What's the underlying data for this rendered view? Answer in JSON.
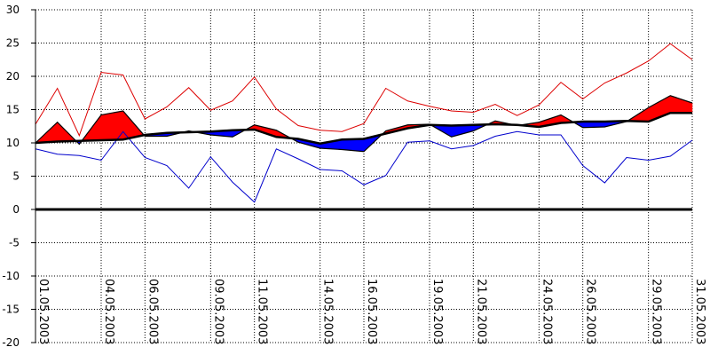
{
  "chart_data": {
    "type": "line",
    "title": "",
    "xlabel": "",
    "ylabel": "",
    "ylim": [
      -20,
      30
    ],
    "yticks": [
      30,
      25,
      20,
      15,
      10,
      5,
      0,
      -5,
      -10,
      -15,
      -20
    ],
    "grid": true,
    "x": [
      "01.05.2003",
      "02.05.2003",
      "03.05.2003",
      "04.05.2003",
      "05.05.2003",
      "06.05.2003",
      "07.05.2003",
      "08.05.2003",
      "09.05.2003",
      "10.05.2003",
      "11.05.2003",
      "12.05.2003",
      "13.05.2003",
      "14.05.2003",
      "15.05.2003",
      "16.05.2003",
      "17.05.2003",
      "18.05.2003",
      "19.05.2003",
      "20.05.2003",
      "21.05.2003",
      "22.05.2003",
      "23.05.2003",
      "24.05.2003",
      "25.05.2003",
      "26.05.2003",
      "27.05.2003",
      "28.05.2003",
      "29.05.2003",
      "30.05.2003",
      "31.05.2003"
    ],
    "x_tick_labels": [
      "01.05.2003",
      "04.05.2003",
      "06.05.2003",
      "09.05.2003",
      "11.05.2003",
      "14.05.2003",
      "16.05.2003",
      "19.05.2003",
      "21.05.2003",
      "24.05.2003",
      "26.05.2003",
      "29.05.2003",
      "31.05.2003"
    ],
    "x_tick_indices": [
      0,
      3,
      5,
      8,
      10,
      13,
      15,
      18,
      20,
      23,
      25,
      28,
      30
    ],
    "series": [
      {
        "role": "max",
        "color": "#dd0000",
        "values": [
          12.8,
          18.2,
          11.1,
          20.6,
          20.2,
          13.6,
          15.4,
          18.3,
          14.9,
          16.3,
          19.9,
          15.1,
          12.6,
          11.9,
          11.7,
          12.9,
          18.2,
          16.3,
          15.5,
          14.8,
          14.6,
          15.8,
          14.1,
          15.7,
          19.1,
          16.6,
          19.0,
          20.5,
          22.3,
          24.9,
          22.5
        ]
      },
      {
        "role": "min",
        "color": "#0000cc",
        "values": [
          9.1,
          8.3,
          8.1,
          7.4,
          11.7,
          7.8,
          6.6,
          3.2,
          7.9,
          4.1,
          1.1,
          9.1,
          7.6,
          6.0,
          5.8,
          3.7,
          5.1,
          10.1,
          10.3,
          9.1,
          9.6,
          11.0,
          11.7,
          11.2,
          11.2,
          6.6,
          4.0,
          7.8,
          7.4,
          8.0,
          10.4
        ]
      },
      {
        "role": "mean",
        "color": "#000000",
        "values": [
          10.0,
          10.2,
          10.3,
          10.4,
          10.5,
          11.2,
          11.5,
          11.6,
          11.7,
          11.9,
          12.0,
          10.9,
          10.6,
          9.9,
          10.5,
          10.6,
          11.4,
          12.2,
          12.7,
          12.6,
          12.7,
          12.8,
          12.7,
          12.4,
          13.0,
          13.2,
          13.2,
          13.3,
          13.2,
          14.5,
          14.5
        ]
      },
      {
        "role": "current",
        "color": "#000000",
        "values": [
          10.0,
          13.1,
          9.8,
          14.2,
          14.8,
          11.0,
          11.0,
          11.8,
          11.2,
          10.9,
          12.7,
          11.9,
          10.1,
          9.2,
          9.0,
          8.7,
          11.8,
          12.7,
          12.8,
          10.9,
          11.8,
          13.3,
          12.6,
          13.1,
          14.2,
          12.3,
          12.4,
          13.2,
          15.3,
          17.1,
          16.0
        ]
      }
    ],
    "fill": {
      "above_mean_color": "#ff0000",
      "below_mean_color": "#0000ff"
    }
  }
}
